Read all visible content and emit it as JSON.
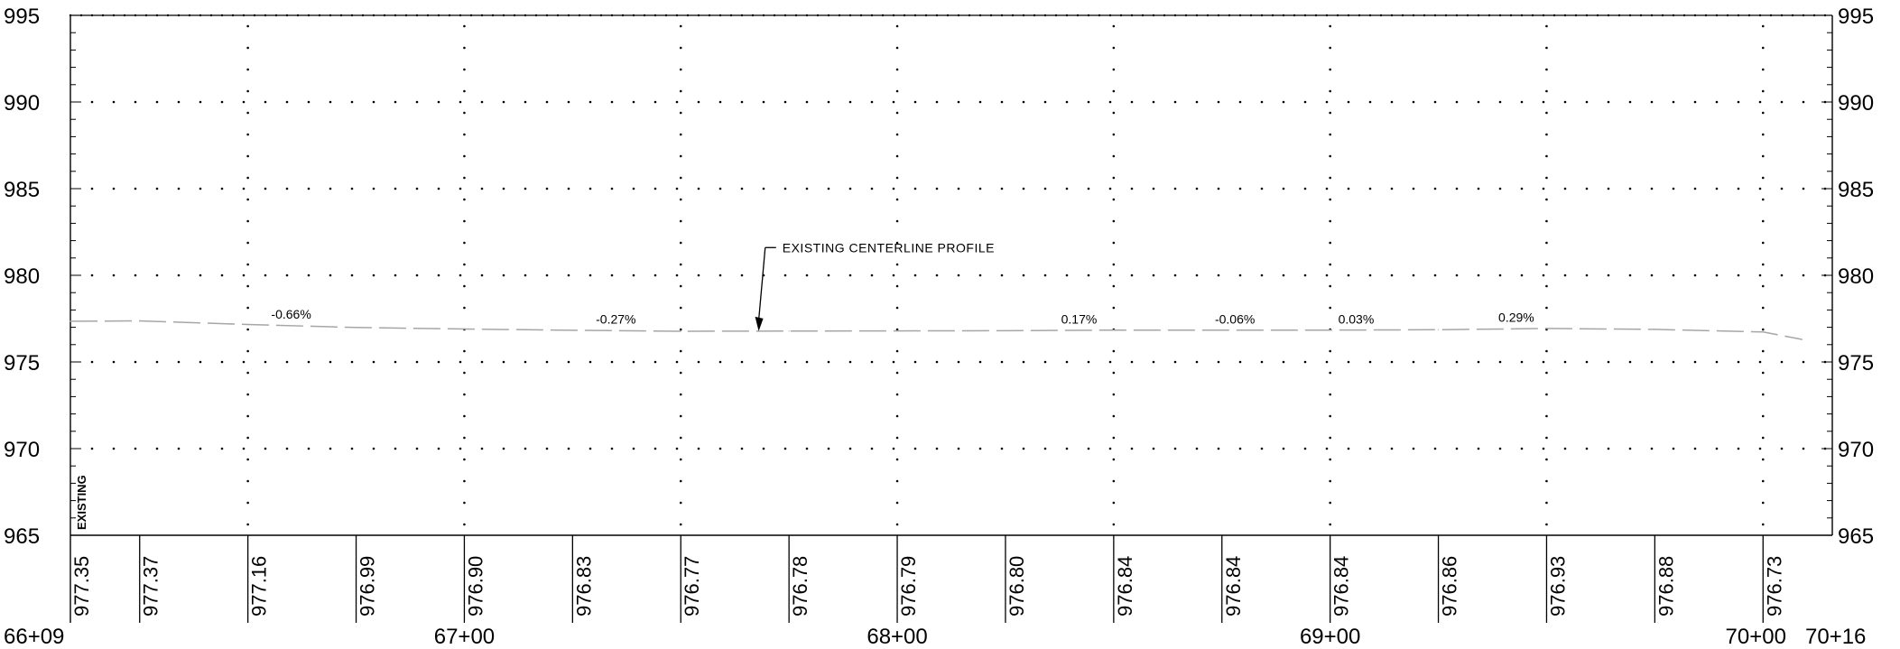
{
  "chart_data": {
    "type": "line",
    "title": "",
    "xlabel": "",
    "ylabel": "",
    "xlim": [
      6609,
      7016
    ],
    "ylim": [
      965,
      995
    ],
    "y_ticks": [
      965,
      970,
      975,
      980,
      985,
      990,
      995
    ],
    "y_tick_labels": [
      "965",
      "970",
      "975",
      "980",
      "985",
      "990",
      "995"
    ],
    "major_stations": [
      {
        "x": 6609,
        "label": "66+09"
      },
      {
        "x": 6700,
        "label": "67+00"
      },
      {
        "x": 6800,
        "label": "68+00"
      },
      {
        "x": 6900,
        "label": "69+00"
      },
      {
        "x": 7000,
        "label": "70+00"
      },
      {
        "x": 7016,
        "label": "70+16"
      }
    ],
    "grid_x": [
      6650,
      6700,
      6750,
      6800,
      6850,
      6900,
      6950,
      7000
    ],
    "grid": true,
    "series": [
      {
        "name": "",
        "style": "dashed",
        "color": "#a6a6a6",
        "points": [
          [
            6609,
            977.35
          ],
          [
            6625,
            977.37
          ],
          [
            6650,
            977.16
          ],
          [
            6675,
            976.99
          ],
          [
            6700,
            976.9
          ],
          [
            6725,
            976.83
          ],
          [
            6750,
            976.77
          ],
          [
            6775,
            976.78
          ],
          [
            6800,
            976.79
          ],
          [
            6825,
            976.8
          ],
          [
            6850,
            976.84
          ],
          [
            6875,
            976.84
          ],
          [
            6900,
            976.84
          ],
          [
            6925,
            976.86
          ],
          [
            6950,
            976.93
          ],
          [
            6975,
            976.88
          ],
          [
            7000,
            976.73
          ],
          [
            7009,
            976.3
          ]
        ]
      }
    ],
    "elevation_row": {
      "title": "EXISTING",
      "entries": [
        {
          "x": 6609,
          "label": "977.35"
        },
        {
          "x": 6625,
          "label": "977.37"
        },
        {
          "x": 6650,
          "label": "977.16"
        },
        {
          "x": 6675,
          "label": "976.99"
        },
        {
          "x": 6700,
          "label": "976.90"
        },
        {
          "x": 6725,
          "label": "976.83"
        },
        {
          "x": 6750,
          "label": "976.77"
        },
        {
          "x": 6775,
          "label": "976.78"
        },
        {
          "x": 6800,
          "label": "976.79"
        },
        {
          "x": 6825,
          "label": "976.80"
        },
        {
          "x": 6850,
          "label": "976.84"
        },
        {
          "x": 6875,
          "label": "976.84"
        },
        {
          "x": 6900,
          "label": "976.84"
        },
        {
          "x": 6925,
          "label": "976.86"
        },
        {
          "x": 6950,
          "label": "976.93"
        },
        {
          "x": 6975,
          "label": "976.88"
        },
        {
          "x": 7000,
          "label": "976.73"
        }
      ]
    },
    "grade_labels": [
      {
        "x": 6660,
        "y": 977.3,
        "label": "-0.66%"
      },
      {
        "x": 6735,
        "y": 977.0,
        "label": "-0.27%"
      },
      {
        "x": 6842,
        "y": 977.0,
        "label": "0.17%"
      },
      {
        "x": 6878,
        "y": 977.0,
        "label": "-0.06%"
      },
      {
        "x": 6906,
        "y": 977.0,
        "label": "0.03%"
      },
      {
        "x": 6943,
        "y": 977.1,
        "label": "0.29%"
      }
    ],
    "annotation": {
      "text": "EXISTING CENTERLINE PROFILE",
      "arrow_target": [
        6768,
        976.78
      ],
      "text_anchor": [
        6772,
        981.6
      ]
    }
  }
}
